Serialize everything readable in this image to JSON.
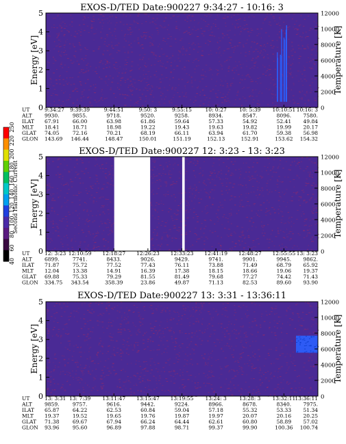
{
  "chart_data": [
    {
      "type": "heatmap",
      "title": "EXOS-D/TED   Date:900227  9:34:27 - 10:16: 3",
      "ylabel": "Energy [eV]",
      "y2label": "Temperature [K]",
      "ylim": [
        0,
        5
      ],
      "y2lim": [
        0,
        12000
      ],
      "yticks": [
        "0",
        "1",
        "2",
        "3",
        "4",
        "5"
      ],
      "y2ticks": [
        "0",
        "2000",
        "4000",
        "6000",
        "8000",
        "10000",
        "12000"
      ],
      "background_color": "#4a2a95",
      "noise_color": "#8a2a70",
      "data_gaps": [],
      "highlights": [
        {
          "label": "10:10:51",
          "energy_range": [
            0.3,
            4.4
          ],
          "color": "#2a60ff"
        }
      ],
      "table": {
        "rows": [
          {
            "label": "UT",
            "values": [
              "9:34:27",
              "9:39:39",
              "9:44:51",
              "9:50: 3",
              "9:55:15",
              "10: 0:27",
              "10: 5:39",
              "10:10:51",
              "10:16: 3"
            ]
          },
          {
            "label": "ALT",
            "values": [
              "9930.",
              "9855.",
              "9718.",
              "9520.",
              "9258.",
              "8934.",
              "8547.",
              "8096.",
              "7580."
            ]
          },
          {
            "label": "ILAT",
            "values": [
              "67.91",
              "66.00",
              "63.98",
              "61.86",
              "59.64",
              "57.33",
              "54.92",
              "52.41",
              "49.84"
            ]
          },
          {
            "label": "MLT",
            "values": [
              "18.41",
              "18.71",
              "18.98",
              "19.22",
              "19.43",
              "19.63",
              "19.82",
              "19.99",
              "20.17"
            ]
          },
          {
            "label": "GLAT",
            "values": [
              "74.05",
              "72.16",
              "70.21",
              "68.19",
              "66.11",
              "63.94",
              "61.70",
              "59.38",
              "56.98"
            ]
          },
          {
            "label": "GLON",
            "values": [
              "143.69",
              "146.44",
              "148.47",
              "150.01",
              "151.19",
              "152.13",
              "152.91",
              "153.62",
              "154.32"
            ]
          }
        ]
      }
    },
    {
      "type": "heatmap",
      "title": "EXOS-D/TED   Date:900227  12: 3:23 - 13: 3:23",
      "ylabel": "Energy [eV]",
      "y2label": "Temperature [K]",
      "ylim": [
        0,
        5
      ],
      "y2lim": [
        0,
        12000
      ],
      "yticks": [
        "0",
        "1",
        "2",
        "3",
        "4",
        "5"
      ],
      "y2ticks": [
        "0",
        "2000",
        "4000",
        "6000",
        "8000",
        "10000",
        "12000"
      ],
      "background_color": "#4a2a95",
      "noise_color": "#8a2a70",
      "data_gaps": [
        {
          "from": "12:18:27",
          "to": "12:26:23"
        },
        {
          "from": "12:33:27",
          "to": "12:34:00"
        }
      ],
      "highlights": [],
      "table": {
        "rows": [
          {
            "label": "UT",
            "values": [
              "12: 3:23",
              "12:10:59",
              "12:18:27",
              "12:26:23",
              "12:33:23",
              "12:41:19",
              "12:48:27",
              "12:55:55",
              "13: 3:23"
            ]
          },
          {
            "label": "ALT",
            "values": [
              "6899.",
              "7741.",
              "8433.",
              "9026.",
              "9429.",
              "9741.",
              "9901.",
              "9945.",
              "9862."
            ]
          },
          {
            "label": "ILAT",
            "values": [
              "71.87",
              "75.72",
              "77.52",
              "77.43",
              "76.11",
              "73.88",
              "71.49",
              "68.79",
              "65.92"
            ]
          },
          {
            "label": "MLT",
            "values": [
              "12.04",
              "13.38",
              "14.91",
              "16.39",
              "17.38",
              "18.15",
              "18.66",
              "19.06",
              "19.37"
            ]
          },
          {
            "label": "GLAT",
            "values": [
              "69.88",
              "75.33",
              "79.29",
              "81.55",
              "81.49",
              "79.68",
              "77.27",
              "74.42",
              "71.43"
            ]
          },
          {
            "label": "GLON",
            "values": [
              "334.75",
              "343.54",
              "358.39",
              "23.86",
              "49.87",
              "71.13",
              "82.53",
              "89.60",
              "93.90"
            ]
          }
        ]
      }
    },
    {
      "type": "heatmap",
      "title": "EXOS-D/TED   Date:900227  13: 3:31 - 13:36:11",
      "ylabel": "Energy [eV]",
      "y2label": "Temperature [K]",
      "ylim": [
        0,
        5
      ],
      "y2lim": [
        0,
        12000
      ],
      "yticks": [
        "0",
        "1",
        "2",
        "3",
        "4",
        "5"
      ],
      "y2ticks": [
        "0",
        "2000",
        "4000",
        "6000",
        "8000",
        "10000",
        "12000"
      ],
      "background_color": "#4a2a95",
      "noise_color": "#8a2a70",
      "data_gaps": [],
      "highlights": [
        {
          "label": "13:36:11",
          "energy_range": [
            2.3,
            3.2
          ],
          "color": "#2a60ff"
        }
      ],
      "table": {
        "rows": [
          {
            "label": "UT",
            "values": [
              "13: 3:31",
              "13: 7:39",
              "13:11:47",
              "13:15:47",
              "13:19:55",
              "13:24: 3",
              "13:28: 3",
              "13:32:11",
              "13:36:11"
            ]
          },
          {
            "label": "ALT",
            "values": [
              "9859.",
              "9757.",
              "9616.",
              "9442.",
              "9224.",
              "8966.",
              "8678.",
              "8340.",
              "7975."
            ]
          },
          {
            "label": "ILAT",
            "values": [
              "65.87",
              "64.22",
              "62.53",
              "60.84",
              "59.04",
              "57.18",
              "55.32",
              "53.33",
              "51.34"
            ]
          },
          {
            "label": "MLT",
            "values": [
              "19.37",
              "19.52",
              "19.65",
              "19.76",
              "19.87",
              "19.97",
              "20.07",
              "20.16",
              "20.25"
            ]
          },
          {
            "label": "GLAT",
            "values": [
              "71.38",
              "69.67",
              "67.94",
              "66.24",
              "64.44",
              "62.61",
              "60.80",
              "58.89",
              "57.02"
            ]
          },
          {
            "label": "GLON",
            "values": [
              "93.96",
              "95.60",
              "96.89",
              "97.88",
              "98.71",
              "99.37",
              "99.90",
              "100.36",
              "100.74"
            ]
          }
        ]
      }
    }
  ],
  "colorbar": {
    "label": "Second Harmonic Current",
    "ticks": [
      "40",
      "60",
      "80",
      "100",
      "120",
      "140",
      "160",
      "180",
      "200",
      "220",
      "250"
    ],
    "colors": [
      "#000000",
      "#3a0a40",
      "#5a1a80",
      "#4a2aa8",
      "#2040e0",
      "#00a0f0",
      "#00c8c8",
      "#00c060",
      "#60d000",
      "#e0e000",
      "#ff9000",
      "#ff0000"
    ]
  }
}
